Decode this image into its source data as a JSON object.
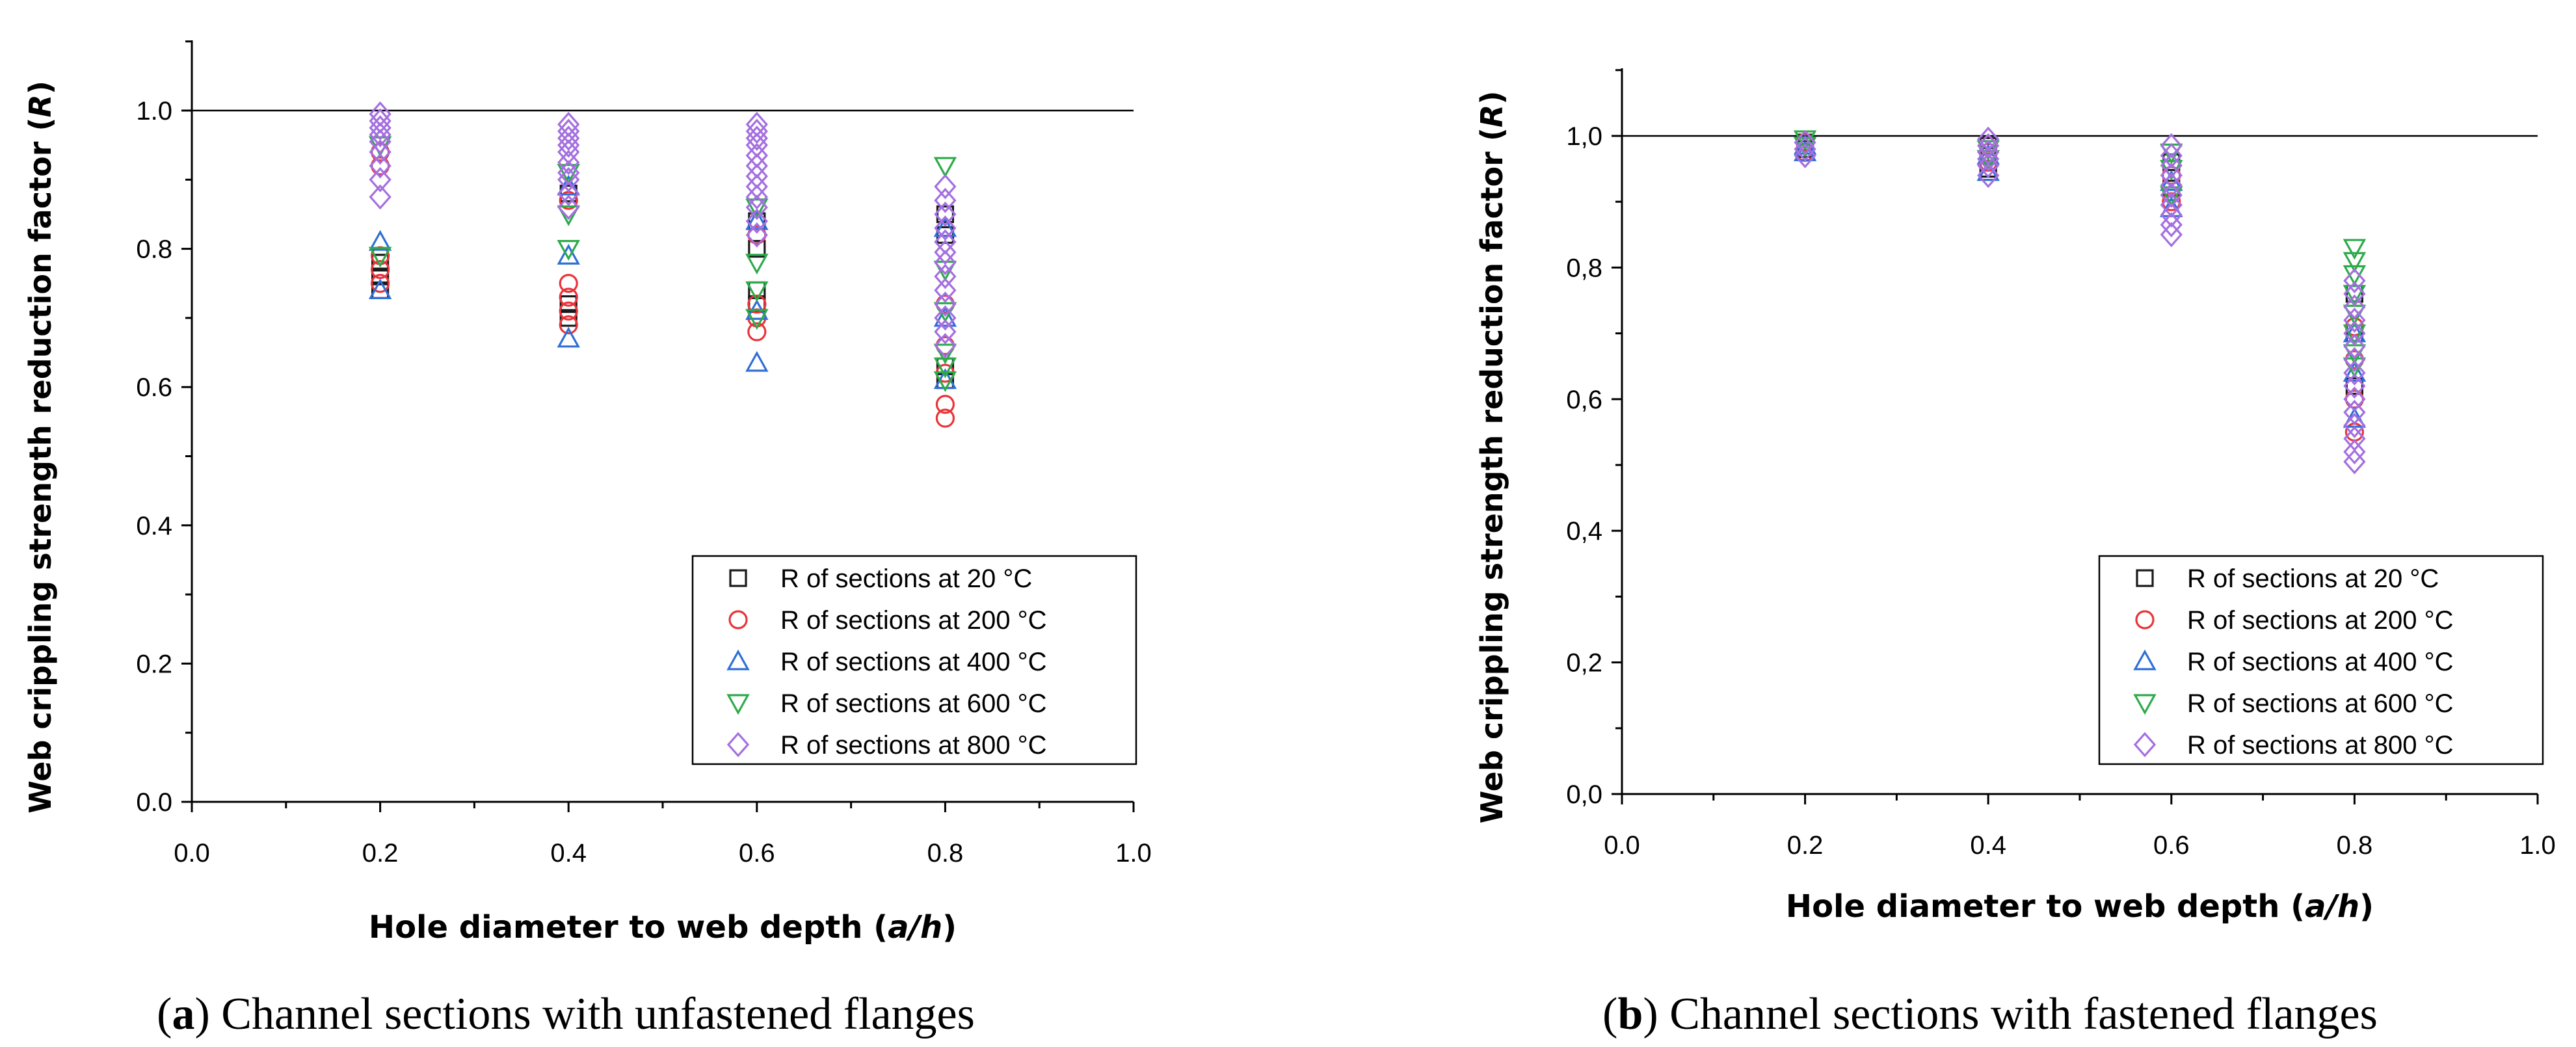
{
  "figure": {
    "captions": [
      {
        "letter": "a",
        "prefix": "(",
        "suffix": ") Channel sections with unfastened flanges"
      },
      {
        "letter": "b",
        "prefix": "(",
        "suffix": ") Channel sections with fastened flanges"
      }
    ]
  },
  "chart_data": [
    {
      "id": "a",
      "type": "scatter",
      "title": "",
      "xlabel_parts": [
        "Hole diameter to web depth (",
        "a/h",
        ")"
      ],
      "ylabel_parts": [
        "Web crippling strength reduction factor (",
        "R",
        ")"
      ],
      "xlim": [
        0.0,
        1.0
      ],
      "ylim": [
        0.0,
        1.1
      ],
      "xticks": [
        "0.0",
        "0.2",
        "0.4",
        "0.6",
        "0.8",
        "1.0"
      ],
      "yticks": [
        "0.0",
        "0.2",
        "0.4",
        "0.6",
        "0.8",
        "1.0"
      ],
      "reference_line_y": 1.0,
      "legend_position": "bottom-right",
      "series": [
        {
          "name": "R of sections at 20 °C",
          "marker": "square",
          "color": "#1a1a1a",
          "points": [
            [
              0.2,
              0.74
            ],
            [
              0.2,
              0.76
            ],
            [
              0.2,
              0.78
            ],
            [
              0.4,
              0.7
            ],
            [
              0.4,
              0.72
            ],
            [
              0.4,
              0.88
            ],
            [
              0.6,
              0.72
            ],
            [
              0.6,
              0.74
            ],
            [
              0.6,
              0.8
            ],
            [
              0.6,
              0.84
            ],
            [
              0.8,
              0.61
            ],
            [
              0.8,
              0.63
            ],
            [
              0.8,
              0.82
            ],
            [
              0.8,
              0.85
            ]
          ]
        },
        {
          "name": "R of sections at 200 °C",
          "marker": "circle",
          "color": "#e8343a",
          "points": [
            [
              0.2,
              0.75
            ],
            [
              0.2,
              0.77
            ],
            [
              0.2,
              0.79
            ],
            [
              0.2,
              0.92
            ],
            [
              0.2,
              0.94
            ],
            [
              0.4,
              0.69
            ],
            [
              0.4,
              0.71
            ],
            [
              0.4,
              0.73
            ],
            [
              0.4,
              0.75
            ],
            [
              0.4,
              0.87
            ],
            [
              0.6,
              0.68
            ],
            [
              0.6,
              0.7
            ],
            [
              0.6,
              0.72
            ],
            [
              0.6,
              0.82
            ],
            [
              0.8,
              0.555
            ],
            [
              0.8,
              0.575
            ],
            [
              0.8,
              0.62
            ],
            [
              0.8,
              0.66
            ],
            [
              0.8,
              0.72
            ]
          ]
        },
        {
          "name": "R of sections at 400 °C",
          "marker": "triangle-up",
          "color": "#2f6fd6",
          "points": [
            [
              0.2,
              0.74
            ],
            [
              0.2,
              0.81
            ],
            [
              0.4,
              0.67
            ],
            [
              0.4,
              0.79
            ],
            [
              0.4,
              0.89
            ],
            [
              0.6,
              0.635
            ],
            [
              0.6,
              0.71
            ],
            [
              0.6,
              0.84
            ],
            [
              0.8,
              0.61
            ],
            [
              0.8,
              0.7
            ],
            [
              0.8,
              0.83
            ]
          ]
        },
        {
          "name": "R of sections at 600 °C",
          "marker": "triangle-down",
          "color": "#2eaa4a",
          "points": [
            [
              0.2,
              0.79
            ],
            [
              0.2,
              0.95
            ],
            [
              0.4,
              0.8
            ],
            [
              0.4,
              0.85
            ],
            [
              0.4,
              0.91
            ],
            [
              0.6,
              0.7
            ],
            [
              0.6,
              0.74
            ],
            [
              0.6,
              0.78
            ],
            [
              0.6,
              0.86
            ],
            [
              0.8,
              0.92
            ],
            [
              0.8,
              0.61
            ],
            [
              0.8,
              0.63
            ],
            [
              0.8,
              0.65
            ],
            [
              0.8,
              0.71
            ],
            [
              0.8,
              0.77
            ]
          ]
        },
        {
          "name": "R of sections at 800 °C",
          "marker": "diamond",
          "color": "#a46fe0",
          "points": [
            [
              0.2,
              0.875
            ],
            [
              0.2,
              0.9
            ],
            [
              0.2,
              0.92
            ],
            [
              0.2,
              0.94
            ],
            [
              0.2,
              0.955
            ],
            [
              0.2,
              0.965
            ],
            [
              0.2,
              0.975
            ],
            [
              0.2,
              0.985
            ],
            [
              0.2,
              0.995
            ],
            [
              0.4,
              0.86
            ],
            [
              0.4,
              0.88
            ],
            [
              0.4,
              0.9
            ],
            [
              0.4,
              0.91
            ],
            [
              0.4,
              0.925
            ],
            [
              0.4,
              0.94
            ],
            [
              0.4,
              0.95
            ],
            [
              0.4,
              0.96
            ],
            [
              0.4,
              0.97
            ],
            [
              0.4,
              0.98
            ],
            [
              0.6,
              0.82
            ],
            [
              0.6,
              0.84
            ],
            [
              0.6,
              0.86
            ],
            [
              0.6,
              0.875
            ],
            [
              0.6,
              0.89
            ],
            [
              0.6,
              0.905
            ],
            [
              0.6,
              0.92
            ],
            [
              0.6,
              0.935
            ],
            [
              0.6,
              0.95
            ],
            [
              0.6,
              0.96
            ],
            [
              0.6,
              0.97
            ],
            [
              0.6,
              0.98
            ],
            [
              0.8,
              0.66
            ],
            [
              0.8,
              0.68
            ],
            [
              0.8,
              0.7
            ],
            [
              0.8,
              0.72
            ],
            [
              0.8,
              0.74
            ],
            [
              0.8,
              0.76
            ],
            [
              0.8,
              0.78
            ],
            [
              0.8,
              0.795
            ],
            [
              0.8,
              0.81
            ],
            [
              0.8,
              0.83
            ],
            [
              0.8,
              0.85
            ],
            [
              0.8,
              0.87
            ],
            [
              0.8,
              0.89
            ]
          ]
        }
      ]
    },
    {
      "id": "b",
      "type": "scatter",
      "title": "",
      "xlabel_parts": [
        "Hole diameter to web depth (",
        "a/h",
        ")"
      ],
      "ylabel_parts": [
        "Web crippling strength reduction factor (",
        "R",
        ")"
      ],
      "xlim": [
        0.0,
        1.0
      ],
      "ylim": [
        0.0,
        1.1
      ],
      "xticks": [
        "0.0",
        "0.2",
        "0.4",
        "0.6",
        "0.8",
        "1.0"
      ],
      "yticks": [
        "0,0",
        "0,2",
        "0,4",
        "0,6",
        "0,8",
        "1,0"
      ],
      "reference_line_y": 1.0,
      "legend_position": "bottom-right",
      "series": [
        {
          "name": "R of sections at 20 °C",
          "marker": "square",
          "color": "#1a1a1a",
          "points": [
            [
              0.2,
              0.98
            ],
            [
              0.2,
              0.99
            ],
            [
              0.4,
              0.95
            ],
            [
              0.4,
              0.97
            ],
            [
              0.4,
              0.985
            ],
            [
              0.6,
              0.92
            ],
            [
              0.6,
              0.96
            ],
            [
              0.8,
              0.62
            ],
            [
              0.8,
              0.7
            ],
            [
              0.8,
              0.76
            ]
          ]
        },
        {
          "name": "R of sections at 200 °C",
          "marker": "circle",
          "color": "#e8343a",
          "points": [
            [
              0.2,
              0.975
            ],
            [
              0.2,
              0.99
            ],
            [
              0.4,
              0.96
            ],
            [
              0.4,
              0.975
            ],
            [
              0.6,
              0.9
            ],
            [
              0.6,
              0.94
            ],
            [
              0.8,
              0.55
            ],
            [
              0.8,
              0.6
            ],
            [
              0.8,
              0.66
            ],
            [
              0.8,
              0.71
            ]
          ]
        },
        {
          "name": "R of sections at 400 °C",
          "marker": "triangle-up",
          "color": "#2f6fd6",
          "points": [
            [
              0.2,
              0.975
            ],
            [
              0.2,
              0.985
            ],
            [
              0.4,
              0.945
            ],
            [
              0.4,
              0.97
            ],
            [
              0.6,
              0.89
            ],
            [
              0.6,
              0.93
            ],
            [
              0.8,
              0.57
            ],
            [
              0.8,
              0.64
            ],
            [
              0.8,
              0.7
            ]
          ]
        },
        {
          "name": "R of sections at 600 °C",
          "marker": "triangle-down",
          "color": "#2eaa4a",
          "points": [
            [
              0.2,
              0.985
            ],
            [
              0.2,
              0.995
            ],
            [
              0.4,
              0.965
            ],
            [
              0.4,
              0.98
            ],
            [
              0.6,
              0.91
            ],
            [
              0.6,
              0.95
            ],
            [
              0.6,
              0.975
            ],
            [
              0.8,
              0.65
            ],
            [
              0.8,
              0.67
            ],
            [
              0.8,
              0.7
            ],
            [
              0.8,
              0.73
            ],
            [
              0.8,
              0.76
            ],
            [
              0.8,
              0.79
            ],
            [
              0.8,
              0.81
            ],
            [
              0.8,
              0.83
            ]
          ]
        },
        {
          "name": "R of sections at 800 °C",
          "marker": "diamond",
          "color": "#a46fe0",
          "points": [
            [
              0.2,
              0.97
            ],
            [
              0.2,
              0.98
            ],
            [
              0.2,
              0.99
            ],
            [
              0.4,
              0.94
            ],
            [
              0.4,
              0.955
            ],
            [
              0.4,
              0.965
            ],
            [
              0.4,
              0.975
            ],
            [
              0.4,
              0.985
            ],
            [
              0.4,
              0.995
            ],
            [
              0.6,
              0.85
            ],
            [
              0.6,
              0.865
            ],
            [
              0.6,
              0.88
            ],
            [
              0.6,
              0.895
            ],
            [
              0.6,
              0.91
            ],
            [
              0.6,
              0.925
            ],
            [
              0.6,
              0.94
            ],
            [
              0.6,
              0.955
            ],
            [
              0.6,
              0.97
            ],
            [
              0.6,
              0.985
            ],
            [
              0.8,
              0.505
            ],
            [
              0.8,
              0.52
            ],
            [
              0.8,
              0.54
            ],
            [
              0.8,
              0.56
            ],
            [
              0.8,
              0.58
            ],
            [
              0.8,
              0.6
            ],
            [
              0.8,
              0.62
            ],
            [
              0.8,
              0.64
            ],
            [
              0.8,
              0.66
            ],
            [
              0.8,
              0.68
            ],
            [
              0.8,
              0.7
            ],
            [
              0.8,
              0.72
            ],
            [
              0.8,
              0.74
            ],
            [
              0.8,
              0.76
            ],
            [
              0.8,
              0.78
            ]
          ]
        }
      ]
    }
  ]
}
